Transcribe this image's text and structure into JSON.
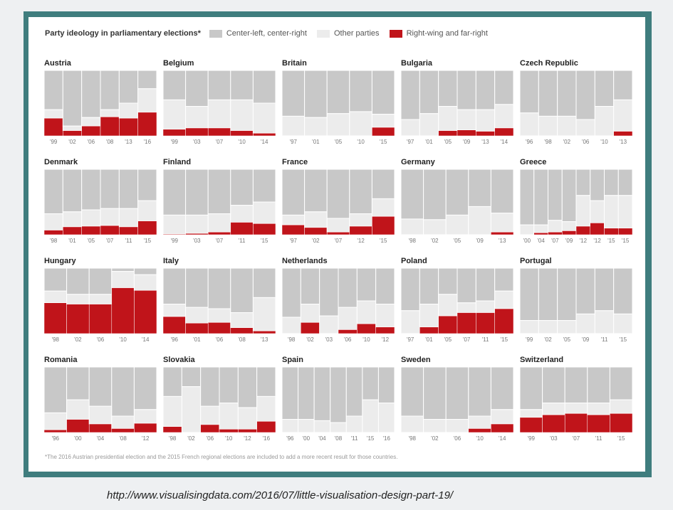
{
  "chart_data": {
    "type": "small-multiples-stacked-bar",
    "title": "Party ideology in parliamentary elections*",
    "legend": [
      {
        "name": "Center-left, center-right",
        "color": "#c8c8c8"
      },
      {
        "name": "Other parties",
        "color": "#ececec"
      },
      {
        "name": "Right-wing and far-right",
        "color": "#c0141a"
      }
    ],
    "y_units": "share of vote (%)",
    "ylim": [
      0,
      100
    ],
    "footnote": "*The 2016 Austrian presidential election and the 2015 French regional elections are included to add a more recent result for those countries.",
    "countries": [
      {
        "name": "Austria",
        "years": [
          "'99",
          "'02",
          "'06",
          "'08",
          "'13",
          "'16"
        ],
        "right": [
          27,
          8,
          15,
          29,
          27,
          36
        ],
        "center": [
          60,
          85,
          72,
          60,
          50,
          28
        ]
      },
      {
        "name": "Belgium",
        "years": [
          "'99",
          "'03",
          "'07",
          "'10",
          "'14"
        ],
        "right": [
          10,
          12,
          12,
          8,
          4
        ],
        "center": [
          45,
          55,
          45,
          45,
          50
        ]
      },
      {
        "name": "Britain",
        "years": [
          "'97",
          "'01",
          "'05",
          "'10",
          "'15"
        ],
        "right": [
          0,
          0,
          0,
          0,
          13
        ],
        "center": [
          70,
          72,
          66,
          63,
          67
        ]
      },
      {
        "name": "Bulgaria",
        "years": [
          "'97",
          "'01",
          "'05",
          "'09",
          "'13",
          "'14"
        ],
        "right": [
          0,
          0,
          8,
          9,
          7,
          12
        ],
        "center": [
          75,
          66,
          55,
          60,
          60,
          52
        ]
      },
      {
        "name": "Czech Republic",
        "years": [
          "'96",
          "'98",
          "'02",
          "'06",
          "'10",
          "'13"
        ],
        "right": [
          0,
          0,
          0,
          0,
          0,
          7
        ],
        "center": [
          65,
          70,
          70,
          75,
          55,
          45
        ]
      },
      {
        "name": "Denmark",
        "years": [
          "'98",
          "'01",
          "'05",
          "'07",
          "'11",
          "'15"
        ],
        "right": [
          7,
          12,
          13,
          14,
          12,
          21
        ],
        "center": [
          68,
          65,
          62,
          60,
          60,
          48
        ]
      },
      {
        "name": "Finland",
        "years": [
          "'99",
          "'03",
          "'07",
          "'11",
          "'15"
        ],
        "right": [
          1,
          2,
          4,
          19,
          17
        ],
        "center": [
          70,
          70,
          68,
          55,
          50
        ]
      },
      {
        "name": "France",
        "years": [
          "'97",
          "'02",
          "'07",
          "'12",
          "'15"
        ],
        "right": [
          15,
          11,
          4,
          13,
          28
        ],
        "center": [
          70,
          65,
          75,
          68,
          45
        ]
      },
      {
        "name": "Germany",
        "years": [
          "'98",
          "'02",
          "'05",
          "'09",
          "'13"
        ],
        "right": [
          0,
          0,
          0,
          0,
          4
        ],
        "center": [
          76,
          77,
          70,
          57,
          67
        ]
      },
      {
        "name": "Greece",
        "years": [
          "'00",
          "'04",
          "'07",
          "'09",
          "'12",
          "'12",
          "'15",
          "'15"
        ],
        "right": [
          0,
          3,
          4,
          6,
          13,
          18,
          10,
          10
        ],
        "center": [
          85,
          85,
          78,
          80,
          40,
          48,
          40,
          40
        ]
      },
      {
        "name": "Hungary",
        "years": [
          "'98",
          "'02",
          "'06",
          "'10",
          "'14"
        ],
        "right": [
          47,
          45,
          45,
          70,
          66
        ],
        "center": [
          35,
          40,
          40,
          5,
          10
        ]
      },
      {
        "name": "Italy",
        "years": [
          "'96",
          "'01",
          "'06",
          "'08",
          "'13"
        ],
        "right": [
          26,
          16,
          17,
          9,
          4
        ],
        "center": [
          55,
          60,
          62,
          68,
          45
        ]
      },
      {
        "name": "Netherlands",
        "years": [
          "'98",
          "'02",
          "'03",
          "'06",
          "'10",
          "'12"
        ],
        "right": [
          0,
          17,
          0,
          6,
          15,
          10
        ],
        "center": [
          75,
          55,
          73,
          60,
          50,
          55
        ]
      },
      {
        "name": "Poland",
        "years": [
          "'97",
          "'01",
          "'05",
          "'07",
          "'11",
          "'15"
        ],
        "right": [
          0,
          10,
          27,
          32,
          32,
          38
        ],
        "center": [
          65,
          55,
          40,
          53,
          50,
          35
        ]
      },
      {
        "name": "Portugal",
        "years": [
          "'99",
          "'02",
          "'05",
          "'09",
          "'11",
          "'15"
        ],
        "right": [
          0,
          0,
          0,
          0,
          0,
          0
        ],
        "center": [
          80,
          80,
          80,
          70,
          65,
          70
        ]
      },
      {
        "name": "Romania",
        "years": [
          "'96",
          "'00",
          "'04",
          "'08",
          "'12"
        ],
        "right": [
          4,
          20,
          13,
          6,
          14
        ],
        "center": [
          70,
          50,
          60,
          75,
          65
        ]
      },
      {
        "name": "Slovakia",
        "years": [
          "'98",
          "'02",
          "'06",
          "'10",
          "'12",
          "'16"
        ],
        "right": [
          9,
          0,
          12,
          5,
          5,
          17
        ],
        "center": [
          45,
          30,
          60,
          55,
          62,
          45
        ]
      },
      {
        "name": "Spain",
        "years": [
          "'96",
          "'00",
          "'04",
          "'08",
          "'11",
          "'15",
          "'16"
        ],
        "right": [
          0,
          0,
          0,
          0,
          0,
          0,
          0
        ],
        "center": [
          80,
          80,
          82,
          85,
          75,
          50,
          55
        ]
      },
      {
        "name": "Sweden",
        "years": [
          "'98",
          "'02",
          "'06",
          "'10",
          "'14"
        ],
        "right": [
          0,
          0,
          0,
          6,
          13
        ],
        "center": [
          75,
          80,
          80,
          75,
          65
        ]
      },
      {
        "name": "Switzerland",
        "years": [
          "'99",
          "'03",
          "'07",
          "'11",
          "'15"
        ],
        "right": [
          23,
          27,
          29,
          27,
          29
        ],
        "center": [
          65,
          55,
          55,
          55,
          50
        ]
      }
    ]
  },
  "page": {
    "url": "http://www.visualisingdata.com/2016/07/little-visualisation-design-part-19/"
  }
}
